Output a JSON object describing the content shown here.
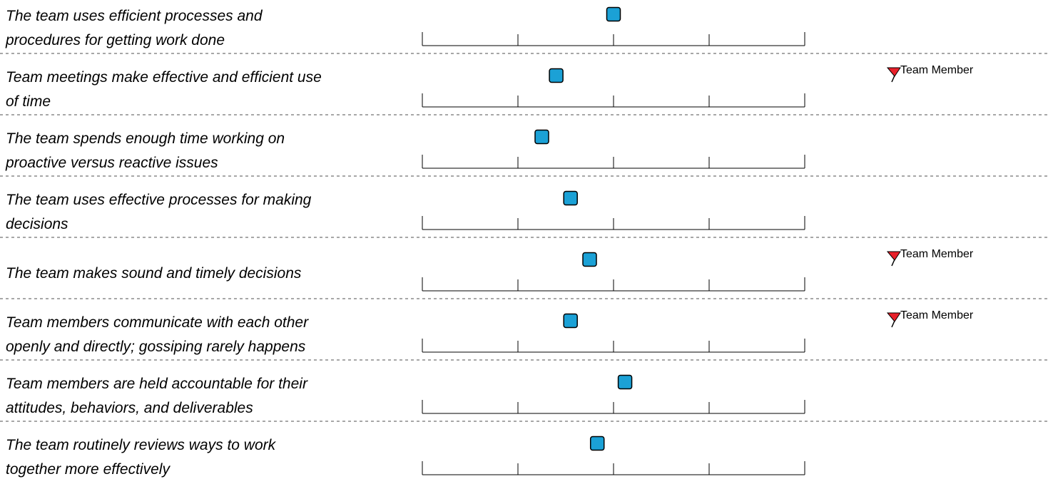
{
  "chart_data": {
    "type": "scatter",
    "scale": {
      "min": 0,
      "max": 4,
      "ticks": [
        0,
        1,
        2,
        3,
        4
      ]
    },
    "grid": false,
    "marker_color": "#1BA1D6",
    "flag_color": "#E8202A",
    "rows": [
      {
        "lines": [
          "The team uses efficient processes and",
          "procedures for getting work done"
        ],
        "value": 2.0,
        "flag": ""
      },
      {
        "lines": [
          "Team meetings make effective and efficient use",
          "of time"
        ],
        "value": 1.4,
        "flag": "Team Member"
      },
      {
        "lines": [
          "The team spends enough time working on",
          "proactive versus reactive issues"
        ],
        "value": 1.25,
        "flag": ""
      },
      {
        "lines": [
          "The team uses effective processes for making",
          "decisions"
        ],
        "value": 1.55,
        "flag": ""
      },
      {
        "lines": [
          "The team makes sound and timely decisions"
        ],
        "value": 1.75,
        "flag": "Team Member"
      },
      {
        "lines": [
          "Team members communicate with each other",
          "openly and directly; gossiping rarely happens"
        ],
        "value": 1.55,
        "flag": "Team Member"
      },
      {
        "lines": [
          "Team members are held accountable for their",
          "attitudes, behaviors, and deliverables"
        ],
        "value": 2.12,
        "flag": ""
      },
      {
        "lines": [
          "The team routinely reviews ways to work",
          "together more effectively"
        ],
        "value": 1.83,
        "flag": ""
      }
    ]
  }
}
